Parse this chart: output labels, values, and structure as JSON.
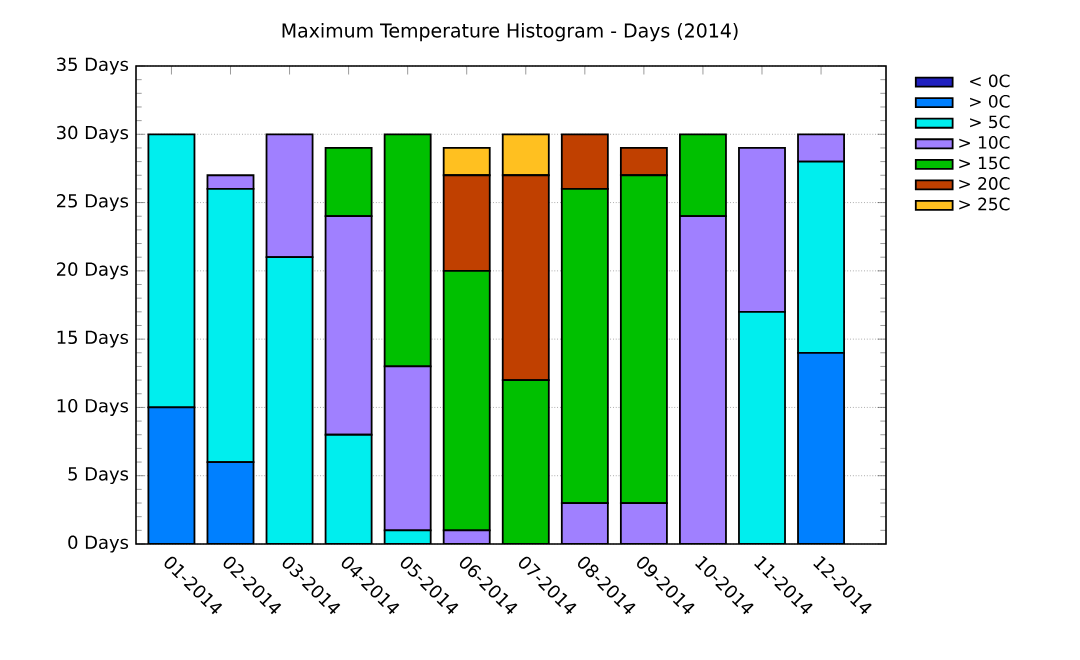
{
  "chart_data": {
    "type": "bar",
    "title": "Maximum Temperature Histogram - Days (2014)",
    "stacked": true,
    "categories": [
      "01-2014",
      "02-2014",
      "03-2014",
      "04-2014",
      "05-2014",
      "06-2014",
      "07-2014",
      "08-2014",
      "09-2014",
      "10-2014",
      "11-2014",
      "12-2014"
    ],
    "series": [
      {
        "name": "< 0C",
        "color": "#2020c0",
        "values": [
          0,
          0,
          0,
          0,
          0,
          0,
          0,
          0,
          0,
          0,
          0,
          0
        ]
      },
      {
        "name": "> 0C",
        "color": "#0080ff",
        "values": [
          10,
          6,
          0,
          0,
          0,
          0,
          0,
          0,
          0,
          0,
          0,
          14
        ]
      },
      {
        "name": "> 5C",
        "color": "#00eeee",
        "values": [
          20,
          20,
          21,
          8,
          1,
          0,
          0,
          0,
          0,
          0,
          17,
          14
        ]
      },
      {
        "name": "> 10C",
        "color": "#a080ff",
        "values": [
          0,
          1,
          9,
          16,
          12,
          1,
          0,
          3,
          3,
          24,
          12,
          2
        ]
      },
      {
        "name": "> 15C",
        "color": "#00c000",
        "values": [
          0,
          0,
          0,
          5,
          17,
          19,
          12,
          23,
          24,
          6,
          0,
          0
        ]
      },
      {
        "name": "> 20C",
        "color": "#c04000",
        "values": [
          0,
          0,
          0,
          0,
          0,
          7,
          15,
          4,
          2,
          0,
          0,
          0
        ]
      },
      {
        "name": "> 25C",
        "color": "#ffc020",
        "values": [
          0,
          0,
          0,
          0,
          0,
          2,
          3,
          0,
          0,
          0,
          0,
          0
        ]
      }
    ],
    "ylim": [
      0,
      35
    ],
    "yticks": [
      {
        "value": 0,
        "label": "0 Days"
      },
      {
        "value": 5,
        "label": "5 Days"
      },
      {
        "value": 10,
        "label": "10 Days"
      },
      {
        "value": 15,
        "label": "15 Days"
      },
      {
        "value": 20,
        "label": "20 Days"
      },
      {
        "value": 25,
        "label": "25 Days"
      },
      {
        "value": 30,
        "label": "30 Days"
      },
      {
        "value": 35,
        "label": "35 Days"
      }
    ],
    "grid": "y",
    "legend": "top right"
  }
}
